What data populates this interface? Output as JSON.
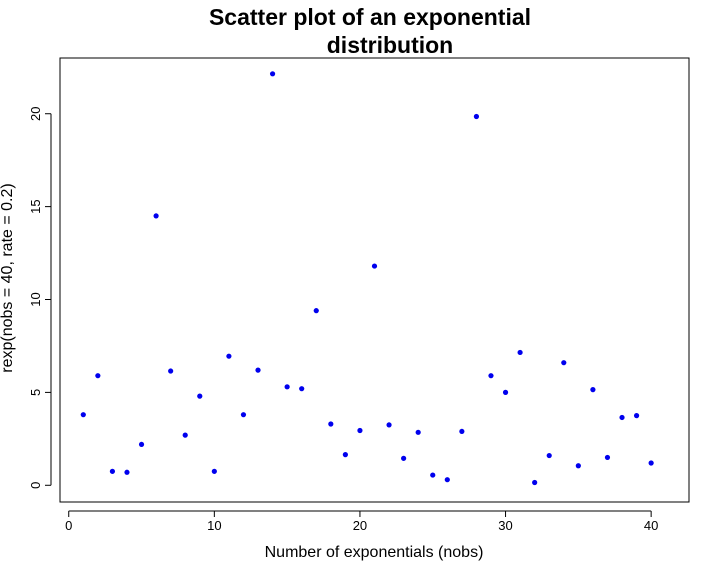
{
  "chart_data": {
    "type": "scatter",
    "title_lines": [
      "Scatter plot of an exponential",
      "distribution"
    ],
    "xlabel": "Number of exponentials (nobs)",
    "ylabel": "rexp(nobs = 40, rate = 0.2)",
    "xlim": [
      -0.6,
      42.6
    ],
    "ylim": [
      -0.9,
      23.0
    ],
    "x_ticks": [
      0,
      10,
      20,
      30,
      40
    ],
    "y_ticks": [
      0,
      5,
      10,
      15,
      20
    ],
    "grid": false,
    "legend": "none",
    "point_color": "#0000ee",
    "x": [
      1,
      2,
      3,
      4,
      5,
      6,
      7,
      8,
      9,
      10,
      11,
      12,
      13,
      14,
      15,
      16,
      17,
      18,
      19,
      20,
      21,
      22,
      23,
      24,
      25,
      26,
      27,
      28,
      29,
      30,
      31,
      32,
      33,
      34,
      35,
      36,
      37,
      38,
      39,
      40
    ],
    "y": [
      3.8,
      5.9,
      0.75,
      0.7,
      2.2,
      14.5,
      6.15,
      2.7,
      4.8,
      0.75,
      6.95,
      3.8,
      6.2,
      22.15,
      5.3,
      5.2,
      9.4,
      3.3,
      1.65,
      2.95,
      11.8,
      3.25,
      1.45,
      2.85,
      0.55,
      0.3,
      2.9,
      19.85,
      5.9,
      5.0,
      7.15,
      0.15,
      1.6,
      6.6,
      1.05,
      5.15,
      1.5,
      3.65,
      3.75,
      1.2
    ]
  }
}
